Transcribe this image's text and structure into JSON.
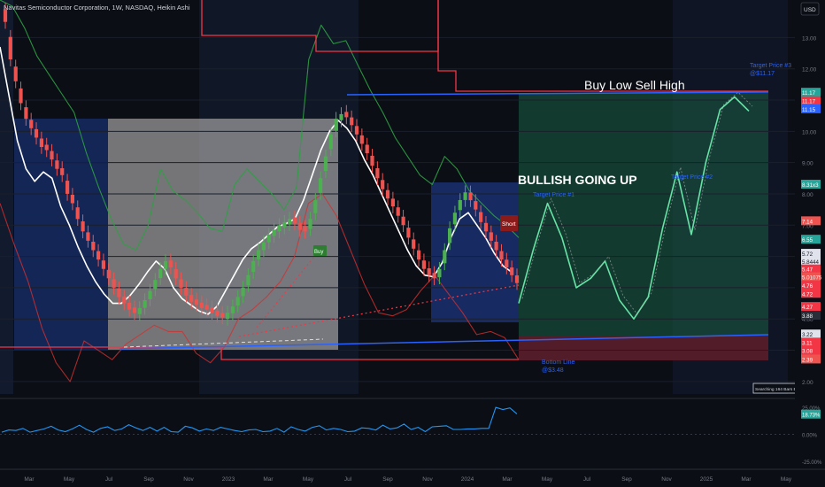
{
  "header": {
    "title": "Navitas Semiconductor Corporation, 1W, NASDAQ, Heikin Ashi",
    "currency": "USD"
  },
  "annotations": {
    "headline": "Buy Low Sell High",
    "bullish": "BULLISH GOING UP",
    "target3": "Target Price #3",
    "target3_value": "@$11.17",
    "target2": "Target Price #2",
    "target1": "Target Price #1",
    "bottom": "Bottom Line",
    "bottom_value": "@$3.48",
    "short": "Short",
    "buy": "Buy",
    "searching": "Searching 164 Bars Back"
  },
  "colors": {
    "bull": "#26a69a",
    "bull_bright": "#4caf50",
    "bear": "#ef5350",
    "ma": "#ffffff",
    "band_upper": "#2ea043",
    "band_lower": "#d32f2f",
    "trendline": "#2962ff",
    "resistance": "#f23645",
    "target_line": "#26a69a",
    "oscillator": "#2196f3"
  },
  "chart_data": {
    "type": "candlestick",
    "style": "Heikin Ashi",
    "interval": "1W",
    "ylim": [
      1.6,
      14.2
    ],
    "y_ticks": [
      "13.00",
      "12.00",
      "11.00",
      "10.00",
      "9.00",
      "8.00",
      "7.00",
      "6.00",
      "5.00",
      "4.00",
      "3.00",
      "2.00"
    ],
    "x_ticks": [
      "Mar",
      "May",
      "Jul",
      "Sep",
      "Nov",
      "2023",
      "Mar",
      "May",
      "Jul",
      "Sep",
      "Nov",
      "2024",
      "Mar",
      "May",
      "Jul",
      "Sep",
      "Nov",
      "2025",
      "Mar",
      "May"
    ],
    "series": [
      {
        "name": "close",
        "values": [
          13.5,
          12.3,
          11.6,
          10.9,
          10.4,
          10.1,
          9.8,
          9.5,
          9.4,
          9.1,
          8.8,
          8.6,
          8.0,
          7.7,
          7.2,
          6.8,
          6.5,
          6.2,
          5.9,
          5.6,
          5.3,
          5.0,
          4.7,
          4.5,
          4.3,
          4.2,
          4.35,
          4.6,
          4.9,
          5.25,
          5.6,
          5.85,
          5.65,
          5.3,
          5.0,
          4.75,
          4.55,
          4.45,
          4.35,
          4.3,
          4.2,
          4.1,
          4.05,
          4.2,
          4.4,
          4.7,
          5.0,
          5.4,
          5.85,
          6.2,
          6.45,
          6.7,
          6.85,
          7.0,
          7.1,
          7.2,
          7.05,
          6.85,
          6.8,
          7.2,
          7.8,
          8.5,
          9.2,
          9.9,
          10.4,
          10.55,
          10.45,
          10.2,
          9.9,
          9.6,
          9.3,
          8.9,
          8.5,
          8.15,
          7.85,
          7.6,
          7.3,
          7.0,
          6.6,
          6.25,
          5.9,
          5.6,
          5.4,
          5.3,
          5.6,
          6.2,
          6.9,
          7.4,
          7.8,
          8.05,
          7.8,
          7.5,
          7.1,
          6.8,
          6.5,
          6.2,
          5.9,
          5.65,
          5.4,
          5.15
        ]
      },
      {
        "name": "moving_average",
        "values": [
          12.7,
          11.2,
          9.7,
          8.8,
          8.4,
          8.7,
          8.5,
          7.6,
          7.0,
          6.3,
          5.7,
          5.2,
          4.8,
          4.5,
          4.5,
          4.75,
          5.1,
          5.5,
          5.85,
          5.6,
          5.0,
          4.65,
          4.45,
          4.25,
          4.15,
          4.4,
          4.9,
          5.4,
          5.9,
          6.25,
          6.45,
          6.7,
          6.95,
          7.05,
          7.2,
          7.8,
          8.6,
          9.4,
          10.0,
          10.35,
          10.1,
          9.7,
          9.1,
          8.6,
          8.0,
          7.4,
          6.8,
          6.2,
          5.7,
          5.4,
          5.35,
          5.8,
          6.6,
          7.2,
          7.4,
          7.0,
          6.6,
          6.1,
          5.7,
          5.5
        ]
      },
      {
        "name": "upper_band",
        "values": [
          14.2,
          14.0,
          13.3,
          12.4,
          11.8,
          11.2,
          10.6,
          9.3,
          8.2,
          7.2,
          6.4,
          6.2,
          7.0,
          8.8,
          8.1,
          7.8,
          7.4,
          6.9,
          6.8,
          8.3,
          8.8,
          8.4,
          8.0,
          7.5,
          8.2,
          12.3,
          13.4,
          12.8,
          12.9,
          12.1,
          11.3,
          10.6,
          9.8,
          9.2,
          8.6,
          8.3,
          9.2,
          8.8,
          8.1,
          7.7,
          7.3,
          7.0,
          6.6
        ]
      },
      {
        "name": "lower_band",
        "values": [
          7.7,
          6.4,
          5.2,
          3.7,
          2.6,
          2.0,
          3.3,
          3.0,
          2.7,
          3.2,
          3.5,
          3.8,
          3.6,
          3.6,
          2.9,
          2.6,
          3.1,
          4.0,
          4.3,
          4.7,
          5.2,
          6.0,
          7.7,
          8.0,
          7.3,
          6.2,
          5.1,
          4.2,
          4.1,
          4.3,
          4.9,
          5.4,
          4.8,
          4.2,
          3.5,
          3.6,
          3.4,
          2.7
        ]
      },
      {
        "name": "projection",
        "values": [
          4.5,
          6.2,
          7.7,
          6.6,
          5.0,
          5.3,
          5.85,
          4.6,
          4.0,
          4.7,
          6.9,
          8.7,
          6.7,
          9.0,
          10.7,
          11.1,
          10.65
        ]
      }
    ],
    "price_scale_labels": [
      {
        "text": "11.17",
        "color": "#26a69a",
        "y": 11.25
      },
      {
        "text": "11.17",
        "color": "#f23645",
        "y": 10.98
      },
      {
        "text": "11.15",
        "color": "#2962ff",
        "y": 10.72
      },
      {
        "text": "8.31x3",
        "color": "#26a69a",
        "y": 8.31
      },
      {
        "text": "7.14",
        "color": "#ef5350",
        "y": 7.14
      },
      {
        "text": "6.55",
        "color": "#26a69a",
        "y": 6.55
      },
      {
        "text": "5.72",
        "color": "#0b0e14",
        "y": 6.1
      },
      {
        "text": "5.8444",
        "color": "#0b0e14",
        "y": 5.85
      },
      {
        "text": "5.47",
        "color": "#f23645",
        "y": 5.6
      },
      {
        "text": "5.01075",
        "color": "#ef5350",
        "y": 5.35
      },
      {
        "text": "4.76",
        "color": "#f23645",
        "y": 5.08
      },
      {
        "text": "4.72",
        "color": "#f23645",
        "y": 4.82
      },
      {
        "text": "4.27",
        "color": "#f23645",
        "y": 4.4
      },
      {
        "text": "3.88",
        "color": "#2a2e39",
        "y": 4.12
      },
      {
        "text": "3.22",
        "color": "#0b0e14",
        "y": 3.52
      },
      {
        "text": "3.11",
        "color": "#f23645",
        "y": 3.26
      },
      {
        "text": "3.08",
        "color": "#f23645",
        "y": 3.0
      },
      {
        "text": "2.39",
        "color": "#ef5350",
        "y": 2.72
      }
    ],
    "oscillator": {
      "name": "oscillator",
      "ticks": [
        "25.00%",
        "0.00%",
        "-25.00%"
      ],
      "current_label": "18.73%",
      "values": [
        2.0,
        4.0,
        3.5,
        5.5,
        2.0,
        3.5,
        5.0,
        7.5,
        4.0,
        2.5,
        5.0,
        8.5,
        4.5,
        2.0,
        5.5,
        7.0,
        3.5,
        5.0,
        9.0,
        6.0,
        3.5,
        6.5,
        3.0,
        6.5,
        2.5,
        2.0,
        7.5,
        6.0,
        3.0,
        5.0,
        3.5,
        6.5,
        5.0,
        3.5,
        2.5,
        4.0,
        4.5,
        2.5,
        3.0,
        5.5,
        2.0,
        7.0,
        4.5,
        3.0,
        6.5,
        8.0,
        4.0,
        5.5,
        4.5,
        2.5,
        3.0,
        6.0,
        5.5,
        4.0,
        8.5,
        5.0,
        6.0,
        9.5,
        4.5,
        6.5,
        2.5,
        7.0,
        7.5,
        8.0,
        4.5,
        4.5,
        5.0,
        5.0,
        5.5,
        5.5,
        25.0,
        23.0,
        24.5,
        19.0
      ]
    }
  }
}
